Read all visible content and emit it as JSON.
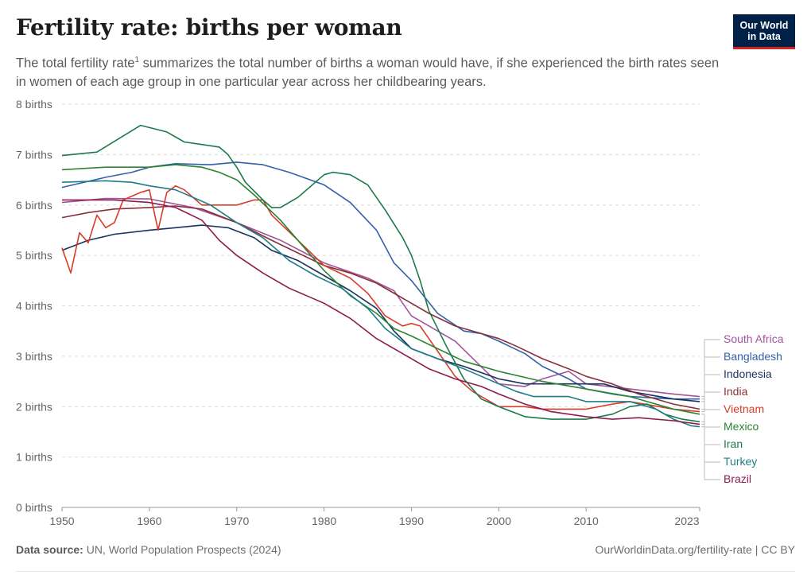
{
  "header": {
    "title": "Fertility rate: births per woman",
    "subtitle_pre": "The total fertility rate",
    "subtitle_sup": "1",
    "subtitle_post": " summarizes the total number of births a woman would have, if she experienced the birth rates seen in women of each age group in one particular year across her childbearing years.",
    "logo_line1": "Our World",
    "logo_line2": "in Data"
  },
  "footer": {
    "source_label": "Data source:",
    "source_text": " UN, World Population Prospects (2024)",
    "url": "OurWorldinData.org/fertility-rate | CC BY"
  },
  "chart_data": {
    "type": "line",
    "title": "Fertility rate: births per woman",
    "ylabel": "",
    "xlabel": "",
    "xlim": [
      1950,
      2023
    ],
    "ylim": [
      0,
      8
    ],
    "grid": "horizontal dashed",
    "legend": "right, end-of-line labels",
    "x_ticks": [
      "1950",
      "1960",
      "1970",
      "1980",
      "1990",
      "2000",
      "2010",
      "2023"
    ],
    "y_ticks": [
      "0 births",
      "1 births",
      "2 births",
      "3 births",
      "4 births",
      "5 births",
      "6 births",
      "7 births",
      "8 births"
    ],
    "series": [
      {
        "name": "South Africa",
        "color": "#a2559c",
        "points": [
          [
            1950,
            6.05
          ],
          [
            1955,
            6.13
          ],
          [
            1960,
            6.12
          ],
          [
            1965,
            5.95
          ],
          [
            1970,
            5.65
          ],
          [
            1975,
            5.3
          ],
          [
            1980,
            4.85
          ],
          [
            1985,
            4.55
          ],
          [
            1988,
            4.3
          ],
          [
            1990,
            3.8
          ],
          [
            1995,
            3.3
          ],
          [
            2000,
            2.45
          ],
          [
            2003,
            2.4
          ],
          [
            2005,
            2.55
          ],
          [
            2008,
            2.7
          ],
          [
            2010,
            2.45
          ],
          [
            2015,
            2.35
          ],
          [
            2020,
            2.25
          ],
          [
            2023,
            2.2
          ]
        ]
      },
      {
        "name": "Bangladesh",
        "color": "#3360a9",
        "points": [
          [
            1950,
            6.35
          ],
          [
            1955,
            6.55
          ],
          [
            1958,
            6.65
          ],
          [
            1960,
            6.75
          ],
          [
            1963,
            6.82
          ],
          [
            1967,
            6.8
          ],
          [
            1970,
            6.85
          ],
          [
            1973,
            6.8
          ],
          [
            1976,
            6.65
          ],
          [
            1980,
            6.4
          ],
          [
            1983,
            6.05
          ],
          [
            1986,
            5.5
          ],
          [
            1988,
            4.85
          ],
          [
            1990,
            4.5
          ],
          [
            1993,
            3.85
          ],
          [
            1996,
            3.5
          ],
          [
            1998,
            3.45
          ],
          [
            2000,
            3.3
          ],
          [
            2003,
            3.05
          ],
          [
            2005,
            2.8
          ],
          [
            2008,
            2.55
          ],
          [
            2010,
            2.35
          ],
          [
            2013,
            2.25
          ],
          [
            2015,
            2.2
          ],
          [
            2020,
            2.15
          ],
          [
            2023,
            2.15
          ]
        ]
      },
      {
        "name": "Indonesia",
        "color": "#18325e",
        "points": [
          [
            1950,
            5.1
          ],
          [
            1953,
            5.3
          ],
          [
            1956,
            5.42
          ],
          [
            1960,
            5.5
          ],
          [
            1963,
            5.55
          ],
          [
            1966,
            5.6
          ],
          [
            1969,
            5.55
          ],
          [
            1972,
            5.35
          ],
          [
            1974,
            5.1
          ],
          [
            1977,
            4.9
          ],
          [
            1980,
            4.6
          ],
          [
            1983,
            4.3
          ],
          [
            1986,
            3.95
          ],
          [
            1988,
            3.5
          ],
          [
            1990,
            3.15
          ],
          [
            1993,
            2.95
          ],
          [
            1996,
            2.8
          ],
          [
            2000,
            2.55
          ],
          [
            2003,
            2.45
          ],
          [
            2006,
            2.45
          ],
          [
            2010,
            2.45
          ],
          [
            2012,
            2.45
          ],
          [
            2015,
            2.3
          ],
          [
            2020,
            2.15
          ],
          [
            2023,
            2.1
          ]
        ]
      },
      {
        "name": "India",
        "color": "#883039",
        "points": [
          [
            1950,
            5.75
          ],
          [
            1953,
            5.85
          ],
          [
            1956,
            5.92
          ],
          [
            1960,
            5.95
          ],
          [
            1963,
            5.98
          ],
          [
            1966,
            5.92
          ],
          [
            1970,
            5.65
          ],
          [
            1974,
            5.3
          ],
          [
            1977,
            5.05
          ],
          [
            1980,
            4.8
          ],
          [
            1983,
            4.65
          ],
          [
            1986,
            4.45
          ],
          [
            1989,
            4.15
          ],
          [
            1992,
            3.85
          ],
          [
            1995,
            3.6
          ],
          [
            1998,
            3.45
          ],
          [
            2000,
            3.35
          ],
          [
            2002,
            3.2
          ],
          [
            2005,
            2.95
          ],
          [
            2008,
            2.75
          ],
          [
            2010,
            2.6
          ],
          [
            2013,
            2.45
          ],
          [
            2016,
            2.25
          ],
          [
            2020,
            2.05
          ],
          [
            2023,
            1.95
          ]
        ]
      },
      {
        "name": "Vietnam",
        "color": "#d73c2a",
        "points": [
          [
            1950,
            5.15
          ],
          [
            1951,
            4.65
          ],
          [
            1952,
            5.45
          ],
          [
            1953,
            5.25
          ],
          [
            1954,
            5.8
          ],
          [
            1955,
            5.55
          ],
          [
            1956,
            5.65
          ],
          [
            1957,
            6.1
          ],
          [
            1959,
            6.25
          ],
          [
            1960,
            6.3
          ],
          [
            1961,
            5.5
          ],
          [
            1962,
            6.25
          ],
          [
            1963,
            6.38
          ],
          [
            1964,
            6.3
          ],
          [
            1966,
            6.0
          ],
          [
            1968,
            6.0
          ],
          [
            1970,
            6.0
          ],
          [
            1972,
            6.1
          ],
          [
            1973,
            6.1
          ],
          [
            1974,
            5.8
          ],
          [
            1977,
            5.3
          ],
          [
            1980,
            4.8
          ],
          [
            1983,
            4.55
          ],
          [
            1985,
            4.25
          ],
          [
            1987,
            3.8
          ],
          [
            1989,
            3.6
          ],
          [
            1990,
            3.65
          ],
          [
            1991,
            3.6
          ],
          [
            1993,
            3.1
          ],
          [
            1995,
            2.6
          ],
          [
            1997,
            2.3
          ],
          [
            1999,
            2.1
          ],
          [
            2000,
            2.0
          ],
          [
            2003,
            2.0
          ],
          [
            2005,
            1.95
          ],
          [
            2008,
            1.95
          ],
          [
            2010,
            1.95
          ],
          [
            2013,
            2.05
          ],
          [
            2015,
            2.1
          ],
          [
            2020,
            1.95
          ],
          [
            2023,
            1.9
          ]
        ]
      },
      {
        "name": "Mexico",
        "color": "#2c8433",
        "points": [
          [
            1950,
            6.7
          ],
          [
            1955,
            6.75
          ],
          [
            1960,
            6.75
          ],
          [
            1963,
            6.8
          ],
          [
            1966,
            6.75
          ],
          [
            1968,
            6.65
          ],
          [
            1970,
            6.5
          ],
          [
            1972,
            6.2
          ],
          [
            1975,
            5.7
          ],
          [
            1978,
            5.1
          ],
          [
            1980,
            4.7
          ],
          [
            1983,
            4.2
          ],
          [
            1986,
            3.85
          ],
          [
            1988,
            3.55
          ],
          [
            1990,
            3.4
          ],
          [
            1993,
            3.15
          ],
          [
            1996,
            2.9
          ],
          [
            2000,
            2.7
          ],
          [
            2005,
            2.5
          ],
          [
            2010,
            2.35
          ],
          [
            2015,
            2.2
          ],
          [
            2020,
            1.95
          ],
          [
            2023,
            1.85
          ]
        ]
      },
      {
        "name": "Iran",
        "color": "#1b7a4b",
        "points": [
          [
            1950,
            6.98
          ],
          [
            1954,
            7.05
          ],
          [
            1959,
            7.58
          ],
          [
            1962,
            7.45
          ],
          [
            1964,
            7.25
          ],
          [
            1966,
            7.2
          ],
          [
            1968,
            7.15
          ],
          [
            1969,
            7.0
          ],
          [
            1970,
            6.75
          ],
          [
            1971,
            6.45
          ],
          [
            1973,
            6.1
          ],
          [
            1974,
            5.95
          ],
          [
            1975,
            5.95
          ],
          [
            1977,
            6.15
          ],
          [
            1979,
            6.45
          ],
          [
            1980,
            6.6
          ],
          [
            1981,
            6.65
          ],
          [
            1983,
            6.6
          ],
          [
            1985,
            6.4
          ],
          [
            1987,
            5.9
          ],
          [
            1989,
            5.35
          ],
          [
            1990,
            5.0
          ],
          [
            1991,
            4.5
          ],
          [
            1992,
            3.9
          ],
          [
            1994,
            3.2
          ],
          [
            1996,
            2.55
          ],
          [
            1998,
            2.15
          ],
          [
            2000,
            2.0
          ],
          [
            2003,
            1.8
          ],
          [
            2006,
            1.75
          ],
          [
            2010,
            1.75
          ],
          [
            2013,
            1.85
          ],
          [
            2015,
            2.0
          ],
          [
            2017,
            2.05
          ],
          [
            2019,
            1.85
          ],
          [
            2021,
            1.75
          ],
          [
            2023,
            1.7
          ]
        ]
      },
      {
        "name": "Turkey",
        "color": "#1f7c87",
        "points": [
          [
            1950,
            6.45
          ],
          [
            1955,
            6.48
          ],
          [
            1958,
            6.45
          ],
          [
            1960,
            6.38
          ],
          [
            1963,
            6.3
          ],
          [
            1965,
            6.15
          ],
          [
            1967,
            6.0
          ],
          [
            1970,
            5.65
          ],
          [
            1973,
            5.35
          ],
          [
            1976,
            4.9
          ],
          [
            1979,
            4.6
          ],
          [
            1982,
            4.35
          ],
          [
            1985,
            3.95
          ],
          [
            1987,
            3.55
          ],
          [
            1990,
            3.15
          ],
          [
            1993,
            2.95
          ],
          [
            1996,
            2.75
          ],
          [
            2000,
            2.45
          ],
          [
            2002,
            2.3
          ],
          [
            2004,
            2.2
          ],
          [
            2008,
            2.2
          ],
          [
            2010,
            2.1
          ],
          [
            2012,
            2.1
          ],
          [
            2015,
            2.1
          ],
          [
            2018,
            1.95
          ],
          [
            2020,
            1.75
          ],
          [
            2022,
            1.62
          ],
          [
            2023,
            1.6
          ]
        ]
      },
      {
        "name": "Brazil",
        "color": "#8c1c4e",
        "points": [
          [
            1950,
            6.1
          ],
          [
            1953,
            6.1
          ],
          [
            1956,
            6.1
          ],
          [
            1960,
            6.05
          ],
          [
            1963,
            5.95
          ],
          [
            1966,
            5.7
          ],
          [
            1968,
            5.3
          ],
          [
            1970,
            5.0
          ],
          [
            1973,
            4.65
          ],
          [
            1976,
            4.35
          ],
          [
            1980,
            4.05
          ],
          [
            1983,
            3.75
          ],
          [
            1986,
            3.35
          ],
          [
            1989,
            3.05
          ],
          [
            1992,
            2.75
          ],
          [
            1995,
            2.55
          ],
          [
            1998,
            2.4
          ],
          [
            2000,
            2.25
          ],
          [
            2003,
            2.05
          ],
          [
            2006,
            1.9
          ],
          [
            2010,
            1.8
          ],
          [
            2013,
            1.75
          ],
          [
            2016,
            1.78
          ],
          [
            2020,
            1.72
          ],
          [
            2023,
            1.65
          ]
        ]
      }
    ]
  }
}
